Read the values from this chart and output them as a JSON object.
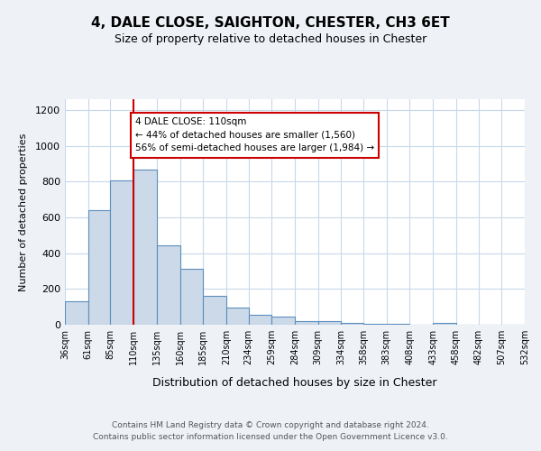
{
  "title": "4, DALE CLOSE, SAIGHTON, CHESTER, CH3 6ET",
  "subtitle": "Size of property relative to detached houses in Chester",
  "xlabel": "Distribution of detached houses by size in Chester",
  "ylabel": "Number of detached properties",
  "bin_edges": [
    36,
    61,
    85,
    110,
    135,
    160,
    185,
    210,
    234,
    259,
    284,
    309,
    334,
    358,
    383,
    408,
    433,
    458,
    482,
    507,
    532
  ],
  "bin_labels": [
    "36sqm",
    "61sqm",
    "85sqm",
    "110sqm",
    "135sqm",
    "160sqm",
    "185sqm",
    "210sqm",
    "234sqm",
    "259sqm",
    "284sqm",
    "309sqm",
    "334sqm",
    "358sqm",
    "383sqm",
    "408sqm",
    "433sqm",
    "458sqm",
    "482sqm",
    "507sqm",
    "532sqm"
  ],
  "bar_heights": [
    130,
    640,
    805,
    865,
    445,
    310,
    160,
    95,
    55,
    45,
    18,
    22,
    12,
    5,
    5,
    0,
    8,
    0,
    2,
    0
  ],
  "bar_color": "#ccd9e8",
  "bar_edge_color": "#5b8fbe",
  "marker_value": 110,
  "marker_color": "#cc0000",
  "ylim": [
    0,
    1260
  ],
  "yticks": [
    0,
    200,
    400,
    600,
    800,
    1000,
    1200
  ],
  "annotation_title": "4 DALE CLOSE: 110sqm",
  "annotation_line1": "← 44% of detached houses are smaller (1,560)",
  "annotation_line2": "56% of semi-detached houses are larger (1,984) →",
  "annotation_box_color": "#ffffff",
  "annotation_box_edge": "#cc0000",
  "footer1": "Contains HM Land Registry data © Crown copyright and database right 2024.",
  "footer2": "Contains public sector information licensed under the Open Government Licence v3.0.",
  "background_color": "#eef2f7",
  "plot_bg_color": "#ffffff",
  "grid_color": "#c8d8ea"
}
